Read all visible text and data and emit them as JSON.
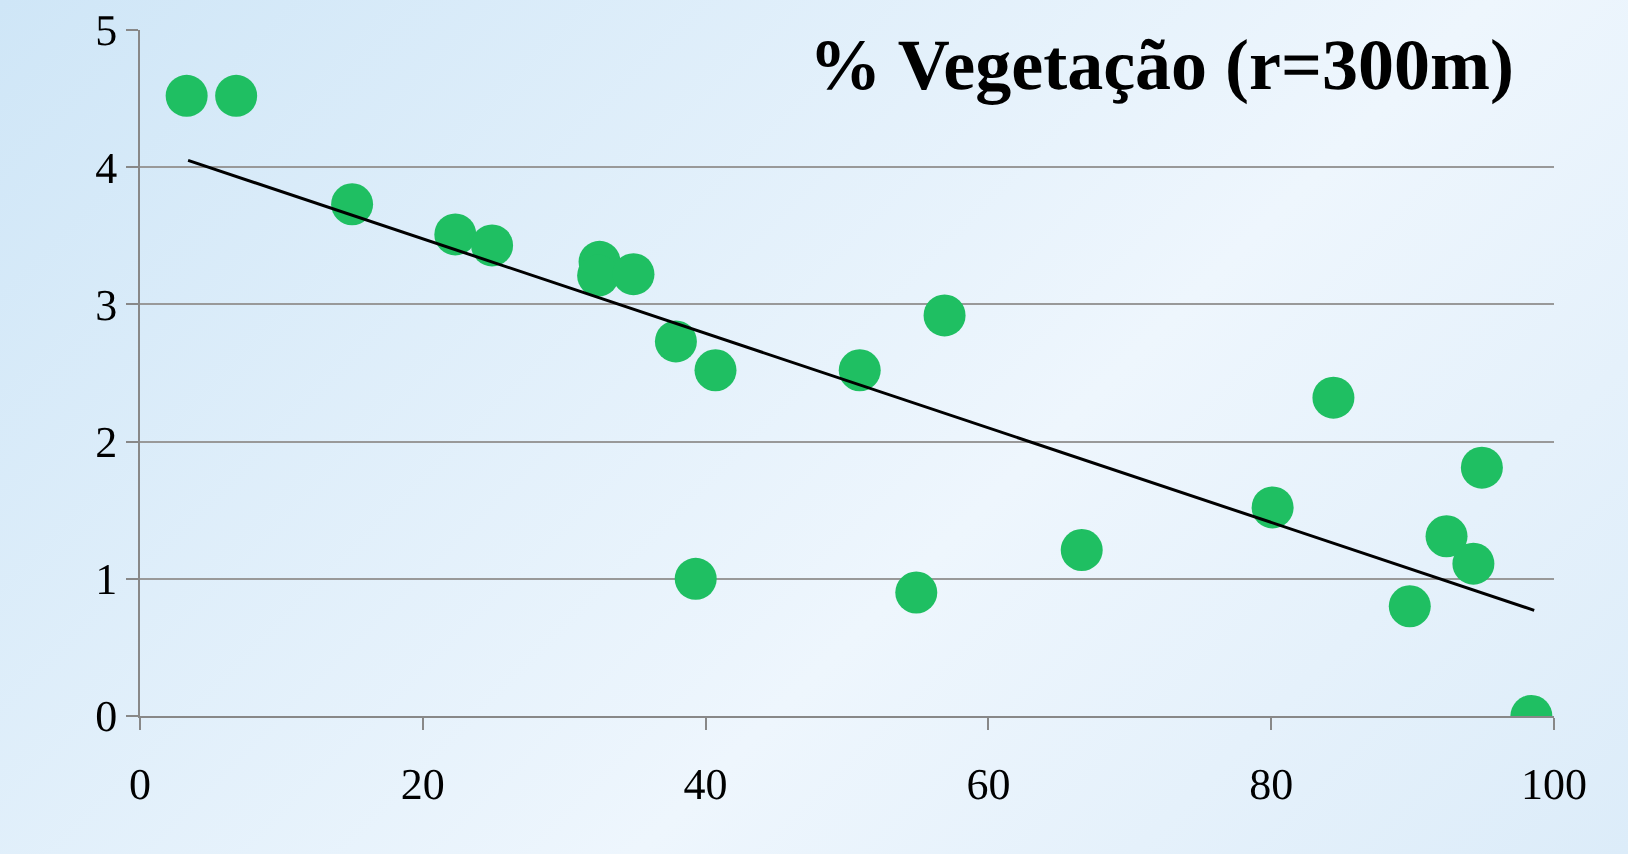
{
  "chart_data": {
    "type": "scatter",
    "title": "% Vegetação (r=300m)",
    "xlim": [
      0,
      100
    ],
    "xticks": [
      0,
      20,
      40,
      60,
      80,
      100
    ],
    "ylim": [
      0,
      5
    ],
    "yticks": [
      0,
      1,
      2,
      3,
      4,
      5
    ],
    "grid": "y",
    "legend": false,
    "marker": "circle",
    "series": [
      {
        "color": "#1fbf62",
        "x": [
          3.3,
          6.8,
          15,
          22.3,
          24.9,
          32.5,
          32.4,
          34.9,
          37.9,
          40.7,
          39.3,
          50.9,
          56.9,
          54.9,
          66.6,
          80.1,
          84.4,
          89.8,
          92.4,
          94.3,
          94.9,
          98.4
        ],
        "values": [
          4.52,
          4.52,
          3.73,
          3.51,
          3.43,
          3.31,
          3.21,
          3.22,
          2.73,
          2.52,
          1.0,
          2.52,
          2.92,
          0.9,
          1.21,
          1.52,
          2.32,
          0.8,
          1.31,
          1.11,
          1.81,
          0
        ]
      },
      {
        "type": "line",
        "marker": "none",
        "color": "#000000",
        "x": [
          3.4,
          98.6
        ],
        "values": [
          4.05,
          0.77
        ]
      }
    ]
  }
}
